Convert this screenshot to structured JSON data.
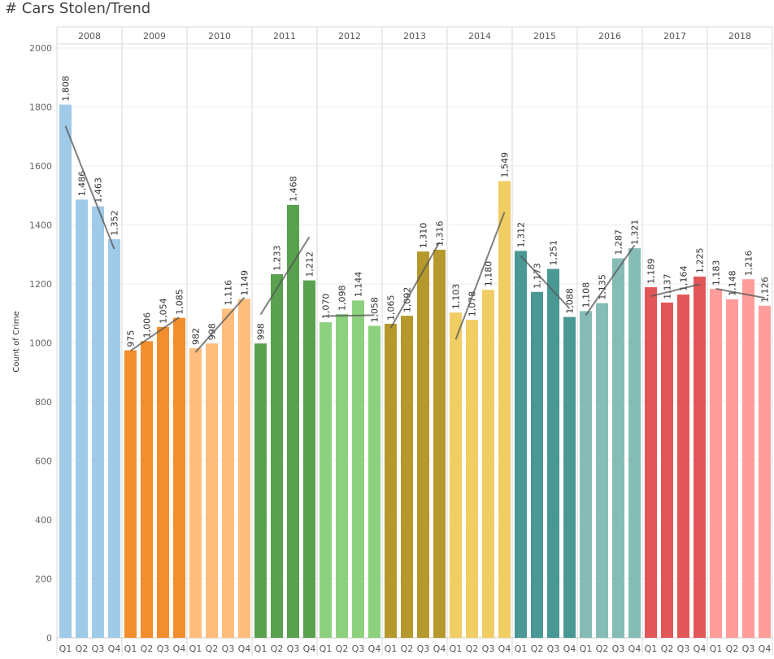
{
  "title": "# Cars Stolen/Trend",
  "chart_data": {
    "type": "bar",
    "ylabel": "Count of Crime",
    "ylim": [
      0,
      2000
    ],
    "yticks": [
      0,
      200,
      400,
      600,
      800,
      1000,
      1200,
      1400,
      1600,
      1800,
      2000
    ],
    "quarters": [
      "Q1",
      "Q2",
      "Q3",
      "Q4"
    ],
    "trend_lines": true,
    "groups": [
      {
        "year": "2008",
        "color": "#a0cbe8",
        "values": [
          1808,
          1486,
          1463,
          1352
        ],
        "labels": [
          "1,808",
          "1,486",
          "1,463",
          "1,352"
        ]
      },
      {
        "year": "2009",
        "color": "#f28e2b",
        "values": [
          975,
          1006,
          1054,
          1085
        ],
        "labels": [
          "975",
          "1,006",
          "1,054",
          "1,085"
        ]
      },
      {
        "year": "2010",
        "color": "#ffbe7d",
        "values": [
          982,
          998,
          1116,
          1149
        ],
        "labels": [
          "982",
          "998",
          "1,116",
          "1,149"
        ]
      },
      {
        "year": "2011",
        "color": "#59a14f",
        "values": [
          998,
          1233,
          1468,
          1212
        ],
        "labels": [
          "998",
          "1,233",
          "1,468",
          "1,212"
        ]
      },
      {
        "year": "2012",
        "color": "#8cd17d",
        "values": [
          1070,
          1098,
          1144,
          1058
        ],
        "labels": [
          "1,070",
          "1,098",
          "1,144",
          "1,058"
        ]
      },
      {
        "year": "2013",
        "color": "#b6992d",
        "values": [
          1065,
          1092,
          1310,
          1316
        ],
        "labels": [
          "1,065",
          "1,092",
          "1,310",
          "1,316"
        ]
      },
      {
        "year": "2014",
        "color": "#f1ce63",
        "values": [
          1103,
          1078,
          1180,
          1549
        ],
        "labels": [
          "1,103",
          "1,078",
          "1,180",
          "1,549"
        ]
      },
      {
        "year": "2015",
        "color": "#499894",
        "values": [
          1312,
          1173,
          1251,
          1088
        ],
        "labels": [
          "1,312",
          "1,173",
          "1,251",
          "1,088"
        ]
      },
      {
        "year": "2016",
        "color": "#86bcb6",
        "values": [
          1108,
          1135,
          1287,
          1321
        ],
        "labels": [
          "1,108",
          "1,135",
          "1,287",
          "1,321"
        ]
      },
      {
        "year": "2017",
        "color": "#e15759",
        "values": [
          1189,
          1137,
          1164,
          1225
        ],
        "labels": [
          "1,189",
          "1,137",
          "1,164",
          "1,225"
        ]
      },
      {
        "year": "2018",
        "color": "#ff9d9a",
        "values": [
          1183,
          1148,
          1216,
          1126
        ],
        "labels": [
          "1,183",
          "1,148",
          "1,216",
          "1,126"
        ]
      }
    ]
  }
}
